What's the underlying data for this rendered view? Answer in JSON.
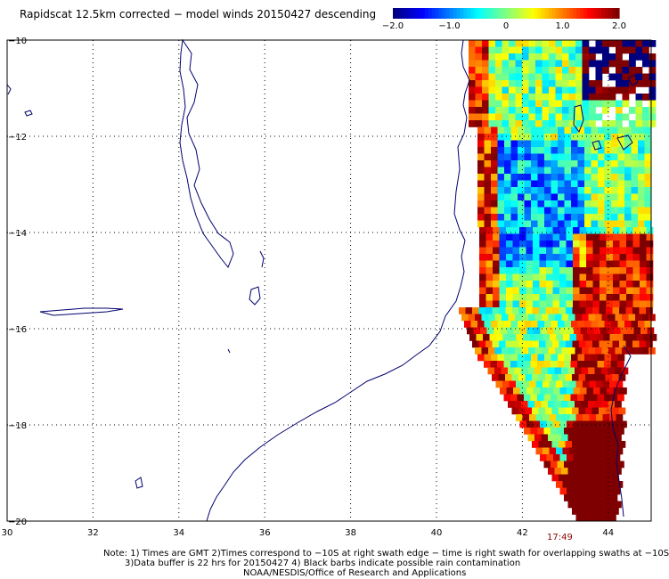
{
  "title": "Rapidscat 12.5km corrected − model winds 20150427 descending",
  "colorbar": {
    "ticks": [
      "−2.0",
      "−1.0",
      "0",
      "1.0",
      "2.0"
    ],
    "range": [
      -2.0,
      2.0
    ],
    "colors": [
      "#00007f",
      "#0000ff",
      "#0080ff",
      "#00ffff",
      "#80ff80",
      "#ffff00",
      "#ff8000",
      "#ff0000",
      "#7f0000"
    ]
  },
  "axes": {
    "x_ticks": [
      "30",
      "32",
      "34",
      "36",
      "38",
      "40",
      "42",
      "44"
    ],
    "y_ticks": [
      "−10",
      "−12",
      "−14",
      "−16",
      "−18",
      "−20"
    ],
    "lon_range": [
      30,
      45
    ],
    "lat_range": [
      -10,
      -20
    ]
  },
  "time_label": "17:49",
  "notes": {
    "line1": "Note: 1) Times are GMT 2)Times correspond to −10S at right swath edge − time is right swath for overlapping swaths at −10S",
    "line2": "3)Data buffer is 22 hrs for 20150427 4) Black barbs indicate possible rain contamination",
    "line3": "NOAA/NESDIS/Office of Research and Applications"
  }
}
